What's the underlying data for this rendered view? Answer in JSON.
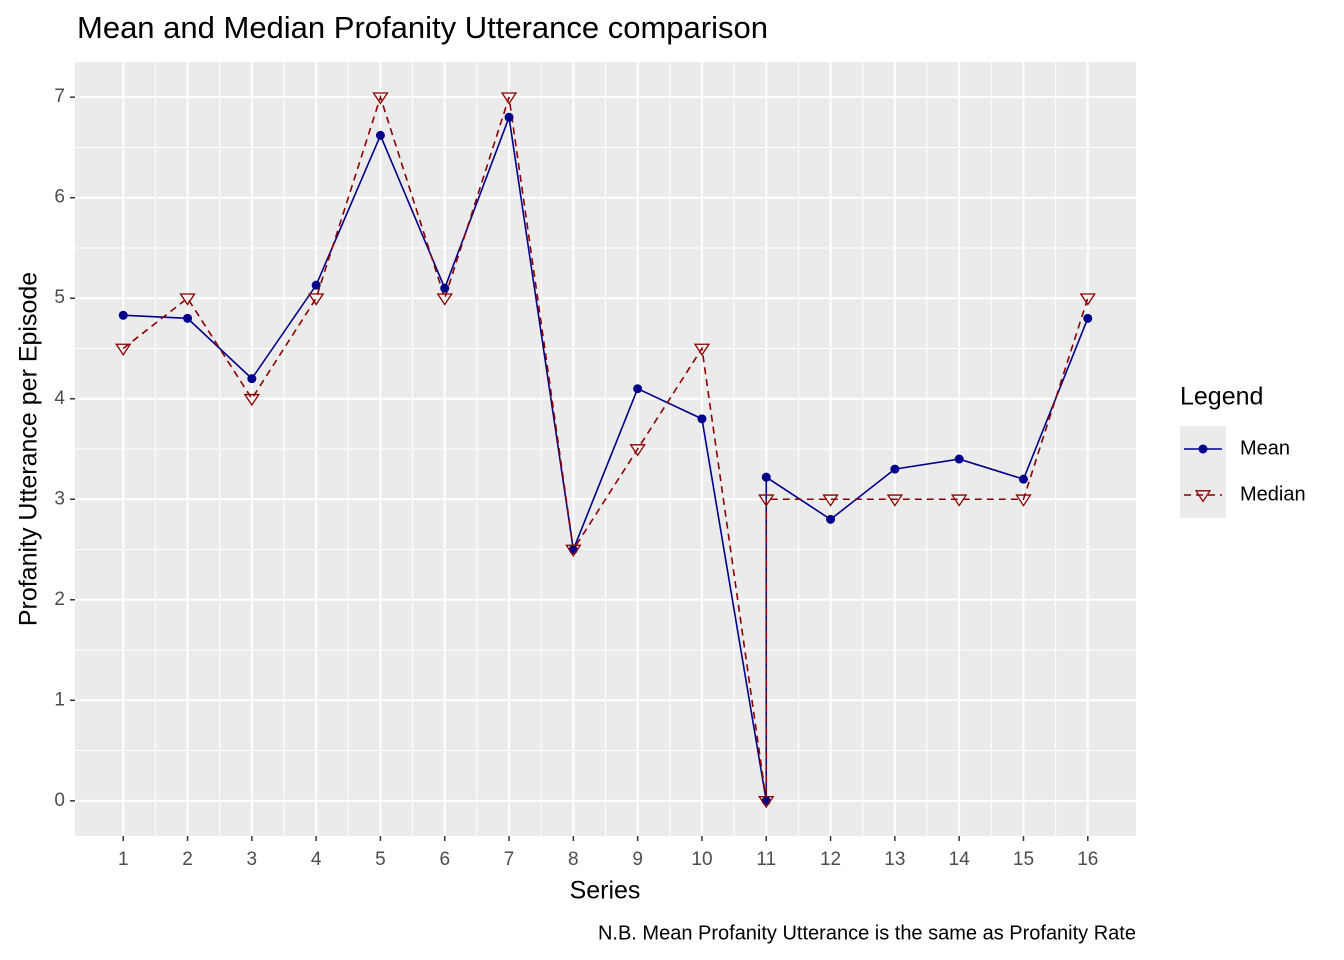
{
  "chart_data": {
    "type": "line",
    "title": "Mean and Median Profanity Utterance comparison",
    "xlabel": "Series",
    "ylabel": "Profanity Utterance per Episode",
    "caption": "N.B. Mean Profanity Utterance is the same as Profanity Rate",
    "legend_title": "Legend",
    "x": [
      1,
      2,
      3,
      4,
      5,
      6,
      7,
      8,
      9,
      10,
      11,
      11,
      12,
      13,
      14,
      15,
      16
    ],
    "series": [
      {
        "name": "Mean",
        "color": "#00008b",
        "marker": "circle",
        "dash": false,
        "values": [
          4.83,
          4.8,
          4.2,
          5.13,
          6.62,
          5.1,
          6.8,
          2.5,
          4.1,
          3.8,
          0,
          3.22,
          2.8,
          3.3,
          3.4,
          3.2,
          4.8
        ]
      },
      {
        "name": "Median",
        "color": "#8b0000",
        "marker": "triangle-down",
        "dash": true,
        "values": [
          4.5,
          5,
          4,
          5,
          7,
          5,
          7,
          2.5,
          3.5,
          4.5,
          0,
          3,
          3,
          3,
          3,
          3,
          5
        ]
      }
    ],
    "xlim": [
      0.25,
      16.75
    ],
    "xticks": [
      1,
      2,
      3,
      4,
      5,
      6,
      7,
      8,
      9,
      10,
      11,
      12,
      13,
      14,
      15,
      16
    ],
    "ylim": [
      -0.35,
      7.35
    ],
    "yticks": [
      0,
      1,
      2,
      3,
      4,
      5,
      6,
      7
    ],
    "grid": true,
    "legend_position": "right"
  }
}
